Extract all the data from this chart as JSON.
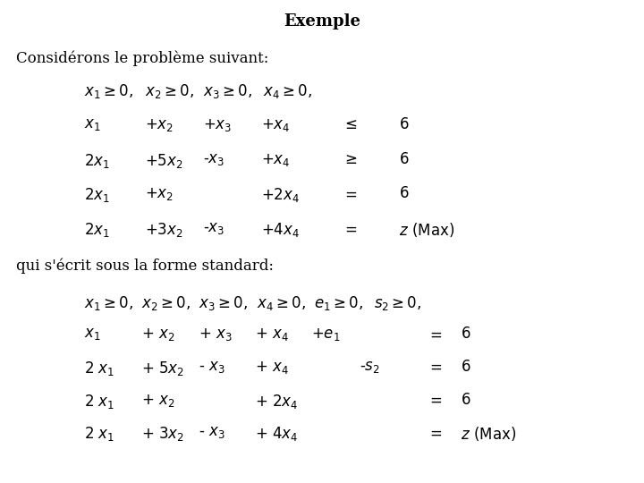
{
  "title": "Exemple",
  "title_bg": "#c8c8e8",
  "bg_color": "#ffffff",
  "title_fontsize": 13,
  "body_fontsize": 12,
  "font_family": "serif",
  "intro1": "Considérons le problème suivant:",
  "intro2": "qui s'écrit sous la forme standard:"
}
